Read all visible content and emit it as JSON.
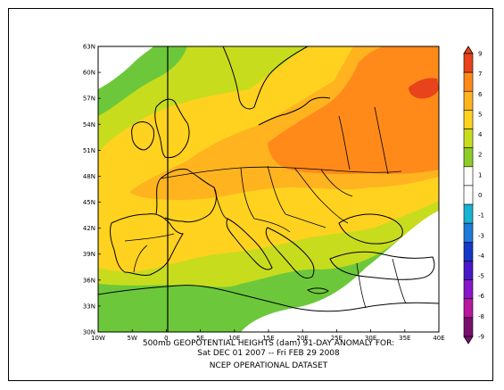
{
  "map": {
    "lat_ticks": [
      "63N",
      "60N",
      "57N",
      "54N",
      "51N",
      "48N",
      "45N",
      "42N",
      "39N",
      "36N",
      "33N",
      "30N"
    ],
    "lon_ticks": [
      "10W",
      "5W",
      "0",
      "5E",
      "10E",
      "15E",
      "20E",
      "25E",
      "30E",
      "35E",
      "40E"
    ],
    "extent": {
      "lon": [
        -10,
        40
      ],
      "lat": [
        30,
        63
      ]
    }
  },
  "caption": {
    "line1": "500mb GEOPOTENTIAL HEIGHTS (dam)    91-DAY ANOMALY FOR:",
    "line2": "Sat DEC 01 2007 -- Fri FEB 29 2008",
    "line3": "NCEP OPERATIONAL DATASET"
  },
  "colorbar": {
    "labels": [
      "9",
      "7",
      "6",
      "5",
      "4",
      "2",
      "1",
      "0",
      "-1",
      "-3",
      "-4",
      "-5",
      "-6",
      "-8",
      "-9"
    ],
    "colors": [
      "#e8431a",
      "#ff8a1a",
      "#ffb31f",
      "#ffd21f",
      "#c8dc1e",
      "#8ccc28",
      "#ffffff",
      "#ffffff",
      "#17b3d2",
      "#1f7ad8",
      "#1438c8",
      "#4b18c8",
      "#8818c8",
      "#b8189e",
      "#7a106e"
    ]
  },
  "anomaly_colors": {
    "white": "#ffffff",
    "green": "#6cc83a",
    "yellowgreen": "#c8dc1e",
    "yellow": "#ffd21f",
    "orange": "#ffb31f",
    "deeporange": "#ff8a1a",
    "red": "#e8431a"
  }
}
